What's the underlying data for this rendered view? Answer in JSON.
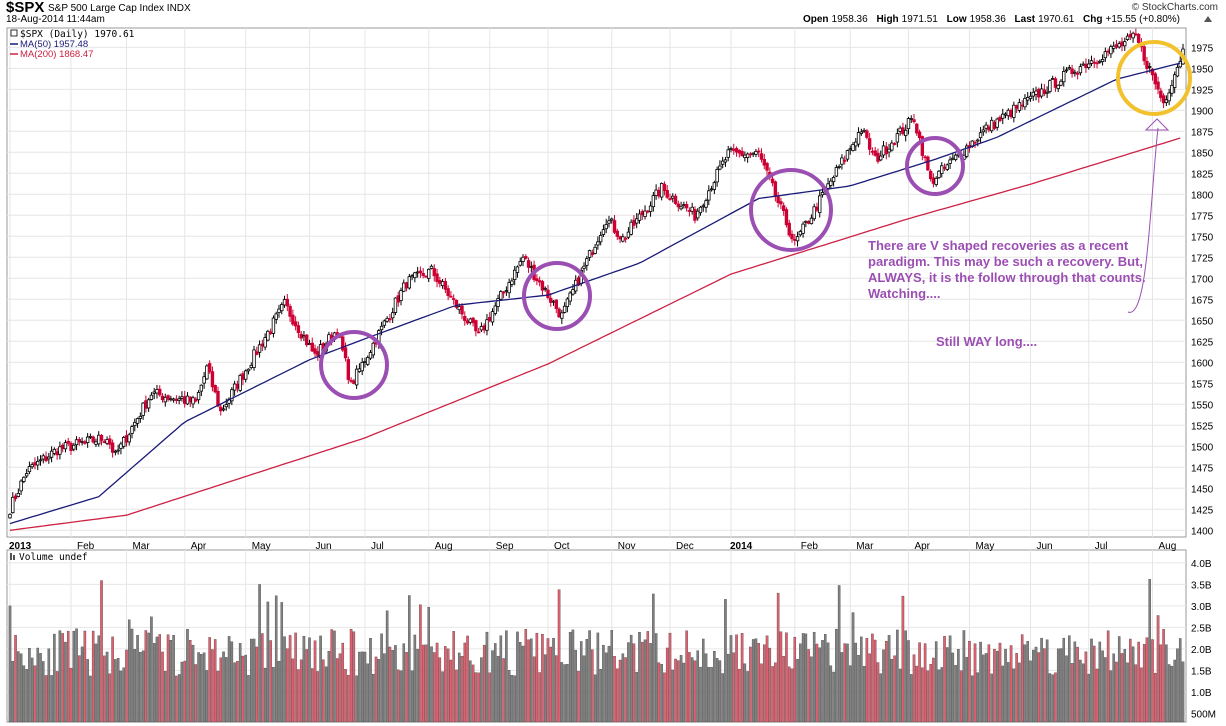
{
  "header": {
    "symbol": "$SPX",
    "name": "S&P 500 Large Cap Index",
    "exchange": "INDX",
    "datetime": "18-Aug-2014 11:44am",
    "brand": "© StockCharts.com",
    "open_label": "Open",
    "open": "1958.36",
    "high_label": "High",
    "high": "1971.51",
    "low_label": "Low",
    "low": "1958.36",
    "last_label": "Last",
    "last": "1970.61",
    "chg_label": "Chg",
    "chg": "+15.55 (+0.80%)"
  },
  "legend": {
    "price": "$SPX (Daily) 1970.61",
    "ma50": "MA(50) 1957.48",
    "ma200": "MA(200) 1868.47",
    "volume": "Volume undef"
  },
  "annotations": {
    "note1": "There are V shaped recoveries as a recent paradigm. This may be such a recovery. But, ALWAYS, it is the follow through that counts. Watching....",
    "note2": "Still WAY long...."
  },
  "colors": {
    "up": "#000000",
    "down": "#cc0033",
    "ma50": "#1a1a7a",
    "ma200": "#cc2244",
    "circle": "#9b4fb3",
    "yellow_circle": "#f2c12e",
    "vol_up": "#808080",
    "vol_down": "#e06070",
    "grid": "#e6e6e6"
  },
  "chart_data": {
    "type": "candlestick",
    "title": "$SPX S&P 500 Large Cap Index",
    "x_ticks": [
      "2013",
      "Feb",
      "Mar",
      "Apr",
      "May",
      "Jun",
      "Jul",
      "Aug",
      "Sep",
      "Oct",
      "Nov",
      "Dec",
      "2014",
      "Feb",
      "Mar",
      "Apr",
      "May",
      "Jun",
      "Jul",
      "Aug"
    ],
    "y_ticks": [
      1400,
      1425,
      1450,
      1475,
      1500,
      1525,
      1550,
      1575,
      1600,
      1625,
      1650,
      1675,
      1700,
      1725,
      1750,
      1775,
      1800,
      1825,
      1850,
      1875,
      1900,
      1925,
      1950,
      1975
    ],
    "ylim": [
      1392,
      1998
    ],
    "close_anchors": [
      [
        "2013-01-02",
        1426
      ],
      [
        "2013-01-10",
        1470
      ],
      [
        "2013-01-25",
        1496
      ],
      [
        "2013-02-20",
        1511
      ],
      [
        "2013-02-25",
        1488
      ],
      [
        "2013-03-14",
        1563
      ],
      [
        "2013-04-05",
        1552
      ],
      [
        "2013-04-11",
        1593
      ],
      [
        "2013-04-18",
        1541
      ],
      [
        "2013-05-21",
        1669
      ],
      [
        "2013-06-05",
        1608
      ],
      [
        "2013-06-17",
        1639
      ],
      [
        "2013-06-24",
        1573
      ],
      [
        "2013-07-22",
        1695
      ],
      [
        "2013-08-02",
        1709
      ],
      [
        "2013-08-27",
        1631
      ],
      [
        "2013-09-18",
        1725
      ],
      [
        "2013-10-08",
        1655
      ],
      [
        "2013-10-30",
        1771
      ],
      [
        "2013-11-07",
        1747
      ],
      [
        "2013-11-27",
        1807
      ],
      [
        "2013-12-13",
        1775
      ],
      [
        "2013-12-31",
        1848
      ],
      [
        "2014-01-15",
        1848
      ],
      [
        "2014-02-03",
        1741
      ],
      [
        "2014-03-07",
        1878
      ],
      [
        "2014-03-14",
        1841
      ],
      [
        "2014-04-03",
        1891
      ],
      [
        "2014-04-11",
        1815
      ],
      [
        "2014-05-09",
        1878
      ],
      [
        "2014-06-24",
        1949
      ],
      [
        "2014-07-24",
        1987
      ],
      [
        "2014-08-07",
        1909
      ],
      [
        "2014-08-18",
        1971
      ]
    ],
    "ma50_anchors": [
      [
        "2013-01-02",
        1408
      ],
      [
        "2013-02-15",
        1440
      ],
      [
        "2013-04-01",
        1529
      ],
      [
        "2013-06-01",
        1603
      ],
      [
        "2013-07-01",
        1628
      ],
      [
        "2013-08-15",
        1668
      ],
      [
        "2013-10-01",
        1680
      ],
      [
        "2013-11-15",
        1718
      ],
      [
        "2014-01-15",
        1795
      ],
      [
        "2014-03-01",
        1810
      ],
      [
        "2014-04-15",
        1842
      ],
      [
        "2014-05-15",
        1868
      ],
      [
        "2014-07-15",
        1937
      ],
      [
        "2014-08-18",
        1957
      ]
    ],
    "ma200_anchors": [
      [
        "2013-01-02",
        1400
      ],
      [
        "2013-03-01",
        1418
      ],
      [
        "2013-07-01",
        1510
      ],
      [
        "2013-10-01",
        1598
      ],
      [
        "2014-01-01",
        1705
      ],
      [
        "2014-04-01",
        1771
      ],
      [
        "2014-06-01",
        1812
      ],
      [
        "2014-08-18",
        1868
      ]
    ],
    "volume_ticks": [
      "4.0B",
      "3.5B",
      "3.0B",
      "2.5B",
      "2.0B",
      "1.5B",
      "1.0B",
      "500M"
    ],
    "volume_ylim_billions": [
      0.3,
      4.3
    ]
  }
}
